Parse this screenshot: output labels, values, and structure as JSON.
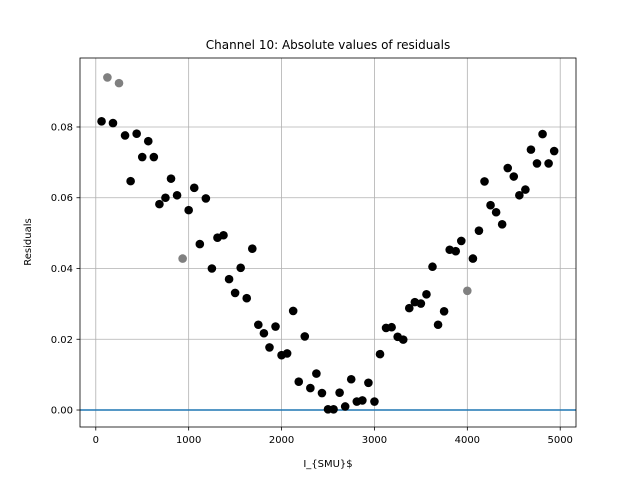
{
  "chart_data": {
    "type": "scatter",
    "title": "Channel 10: Absolute values of residuals",
    "xlabel": "I_{SMU}$",
    "ylabel": "Residuals",
    "xlim": [
      -170,
      5170
    ],
    "ylim": [
      -0.0048,
      0.0995
    ],
    "xticks": [
      0,
      1000,
      2000,
      3000,
      4000,
      5000
    ],
    "xtick_labels": [
      "0",
      "1000",
      "2000",
      "3000",
      "4000",
      "5000"
    ],
    "yticks": [
      0.0,
      0.02,
      0.04,
      0.06,
      0.08
    ],
    "ytick_labels": [
      "0.00",
      "0.02",
      "0.04",
      "0.06",
      "0.08"
    ],
    "grid": true,
    "reference_line": {
      "y": 0.0,
      "color": "#1f77b4"
    },
    "series": [
      {
        "color": "#000000",
        "points": [
          [
            62,
            0.0816
          ],
          [
            185,
            0.0811
          ],
          [
            315,
            0.0776
          ],
          [
            375,
            0.0647
          ],
          [
            440,
            0.0781
          ],
          [
            500,
            0.0715
          ],
          [
            565,
            0.076
          ],
          [
            625,
            0.0715
          ],
          [
            685,
            0.0582
          ],
          [
            750,
            0.06
          ],
          [
            810,
            0.0654
          ],
          [
            875,
            0.0607
          ],
          [
            1000,
            0.0565
          ],
          [
            1060,
            0.0628
          ],
          [
            1120,
            0.0469
          ],
          [
            1185,
            0.0598
          ],
          [
            1250,
            0.04
          ],
          [
            1310,
            0.0487
          ],
          [
            1375,
            0.0494
          ],
          [
            1435,
            0.037
          ],
          [
            1500,
            0.0331
          ],
          [
            1560,
            0.0402
          ],
          [
            1625,
            0.0316
          ],
          [
            1685,
            0.0456
          ],
          [
            1750,
            0.0241
          ],
          [
            1810,
            0.0217
          ],
          [
            1870,
            0.0177
          ],
          [
            1935,
            0.0236
          ],
          [
            2000,
            0.0155
          ],
          [
            2060,
            0.016
          ],
          [
            2125,
            0.028
          ],
          [
            2185,
            0.008
          ],
          [
            2250,
            0.0208
          ],
          [
            2310,
            0.0062
          ],
          [
            2375,
            0.0103
          ],
          [
            2435,
            0.0048
          ],
          [
            2500,
            0.0002
          ],
          [
            2560,
            0.0002
          ],
          [
            2625,
            0.0049
          ],
          [
            2685,
            0.001
          ],
          [
            2750,
            0.0087
          ],
          [
            2810,
            0.0024
          ],
          [
            2870,
            0.0027
          ],
          [
            2935,
            0.0077
          ],
          [
            3000,
            0.0024
          ],
          [
            3060,
            0.0158
          ],
          [
            3125,
            0.0232
          ],
          [
            3185,
            0.0234
          ],
          [
            3250,
            0.0207
          ],
          [
            3310,
            0.0199
          ],
          [
            3375,
            0.0288
          ],
          [
            3435,
            0.0305
          ],
          [
            3500,
            0.0301
          ],
          [
            3560,
            0.0327
          ],
          [
            3625,
            0.0405
          ],
          [
            3685,
            0.0241
          ],
          [
            3750,
            0.0279
          ],
          [
            3810,
            0.0453
          ],
          [
            3875,
            0.0449
          ],
          [
            3935,
            0.0478
          ],
          [
            4060,
            0.0428
          ],
          [
            4125,
            0.0507
          ],
          [
            4185,
            0.0646
          ],
          [
            4250,
            0.0579
          ],
          [
            4310,
            0.0559
          ],
          [
            4375,
            0.0525
          ],
          [
            4435,
            0.0684
          ],
          [
            4500,
            0.066
          ],
          [
            4560,
            0.0607
          ],
          [
            4625,
            0.0623
          ],
          [
            4685,
            0.0736
          ],
          [
            4750,
            0.0697
          ],
          [
            4810,
            0.078
          ],
          [
            4875,
            0.0697
          ],
          [
            4935,
            0.0732
          ]
        ]
      },
      {
        "color": "#808080",
        "points": [
          [
            125,
            0.094
          ],
          [
            250,
            0.0924
          ],
          [
            935,
            0.0428
          ],
          [
            4000,
            0.0337
          ]
        ]
      }
    ]
  }
}
